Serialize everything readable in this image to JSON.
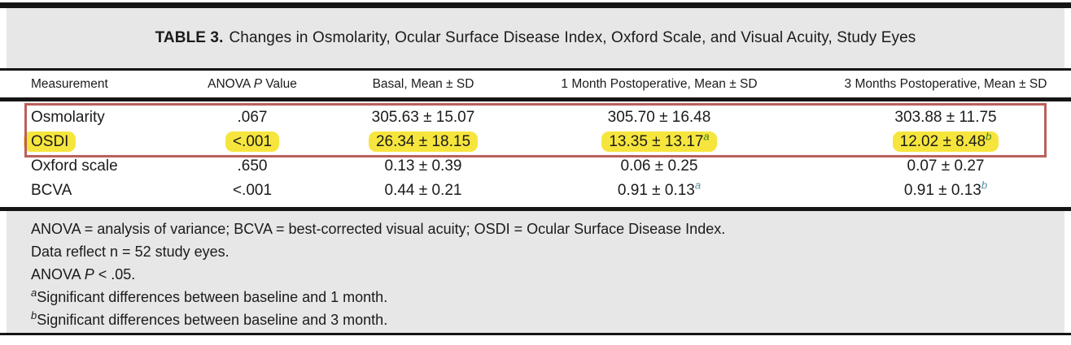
{
  "colors": {
    "band_gray": "#e7e7e7",
    "rule_black": "#151515",
    "text_black": "#1b1b1b",
    "highlight_yellow": "#f6e53d",
    "box_red": "#bb5f5c",
    "sup_teal": "#4e90a2",
    "sup_green": "#3e7d1e"
  },
  "table": {
    "title_label": "TABLE 3.",
    "title_text": "Changes in Osmolarity, Ocular Surface Disease Index, Oxford Scale, and Visual Acuity, Study Eyes",
    "columns": [
      {
        "parts": [
          {
            "t": "Measurement"
          }
        ]
      },
      {
        "parts": [
          {
            "t": "ANOVA "
          },
          {
            "t": "P",
            "i": true
          },
          {
            "t": " Value"
          }
        ]
      },
      {
        "parts": [
          {
            "t": "Basal, Mean ± SD"
          }
        ]
      },
      {
        "parts": [
          {
            "t": "1 Month Postoperative, Mean ± SD"
          }
        ]
      },
      {
        "parts": [
          {
            "t": "3 Months Postoperative, Mean ± SD"
          }
        ]
      }
    ],
    "rows": [
      {
        "measurement": "Osmolarity",
        "anova_p": ".067",
        "basal": {
          "text": "305.63 ± 15.07"
        },
        "month1": {
          "text": "305.70 ± 16.48"
        },
        "month3": {
          "text": "303.88 ± 11.75"
        },
        "highlighted": false,
        "boxed": true
      },
      {
        "measurement": "OSDI",
        "anova_p": "<.001",
        "basal": {
          "text": "26.34 ± 18.15"
        },
        "month1": {
          "text": "13.35 ± 13.17",
          "sup": "a"
        },
        "month3": {
          "text": "12.02 ± 8.48",
          "sup": "b"
        },
        "highlighted": true,
        "boxed": true
      },
      {
        "measurement": "Oxford scale",
        "anova_p": ".650",
        "basal": {
          "text": "0.13 ± 0.39"
        },
        "month1": {
          "text": "0.06 ± 0.25"
        },
        "month3": {
          "text": "0.07 ± 0.27"
        },
        "highlighted": false,
        "boxed": false
      },
      {
        "measurement": "BCVA",
        "anova_p": "<.001",
        "basal": {
          "text": "0.44 ± 0.21"
        },
        "month1": {
          "text": "0.91 ± 0.13",
          "sup": "a"
        },
        "month3": {
          "text": "0.91 ± 0.13",
          "sup": "b"
        },
        "highlighted": false,
        "boxed": false
      }
    ]
  },
  "footnotes": [
    {
      "sup": "",
      "parts": [
        {
          "t": "ANOVA = analysis of variance; BCVA = best-corrected visual acuity; OSDI = Ocular Surface Disease Index."
        }
      ]
    },
    {
      "sup": "",
      "parts": [
        {
          "t": "Data reflect n = 52 study eyes."
        }
      ]
    },
    {
      "sup": "",
      "parts": [
        {
          "t": "ANOVA "
        },
        {
          "t": "P",
          "i": true
        },
        {
          "t": " < .05."
        }
      ]
    },
    {
      "sup": "a",
      "parts": [
        {
          "t": "Significant differences between baseline and 1 month."
        }
      ]
    },
    {
      "sup": "b",
      "parts": [
        {
          "t": "Significant differences between baseline and 3 month."
        }
      ]
    }
  ]
}
